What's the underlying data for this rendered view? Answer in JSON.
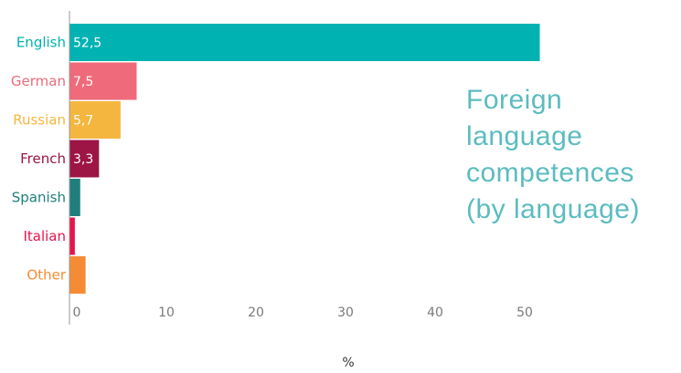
{
  "colors": {
    "title": "#5bbcbf",
    "axis": "#999999",
    "tick_text": "#7a7a7a"
  },
  "title_lines": [
    "Foreign",
    "language",
    "competences",
    "(by language)"
  ],
  "chart_data": {
    "type": "bar",
    "orientation": "horizontal",
    "title": "Foreign language competences (by language)",
    "xlabel": "%",
    "ylabel": "",
    "xlim": [
      0,
      55
    ],
    "xticks": [
      0,
      10,
      20,
      30,
      40,
      50
    ],
    "grid": false,
    "categories": [
      "English",
      "German",
      "Russian",
      "French",
      "Spanish",
      "Italian",
      "Other"
    ],
    "values": [
      52.5,
      7.5,
      5.7,
      3.3,
      1.2,
      0.6,
      1.8
    ],
    "value_labels": [
      "52,5",
      "7,5",
      "5,7",
      "3,3",
      "",
      "",
      ""
    ],
    "colors": [
      "#00b2b2",
      "#ef6a7a",
      "#f4b63f",
      "#9c1545",
      "#1f7f7d",
      "#e8134b",
      "#f58c35"
    ]
  }
}
